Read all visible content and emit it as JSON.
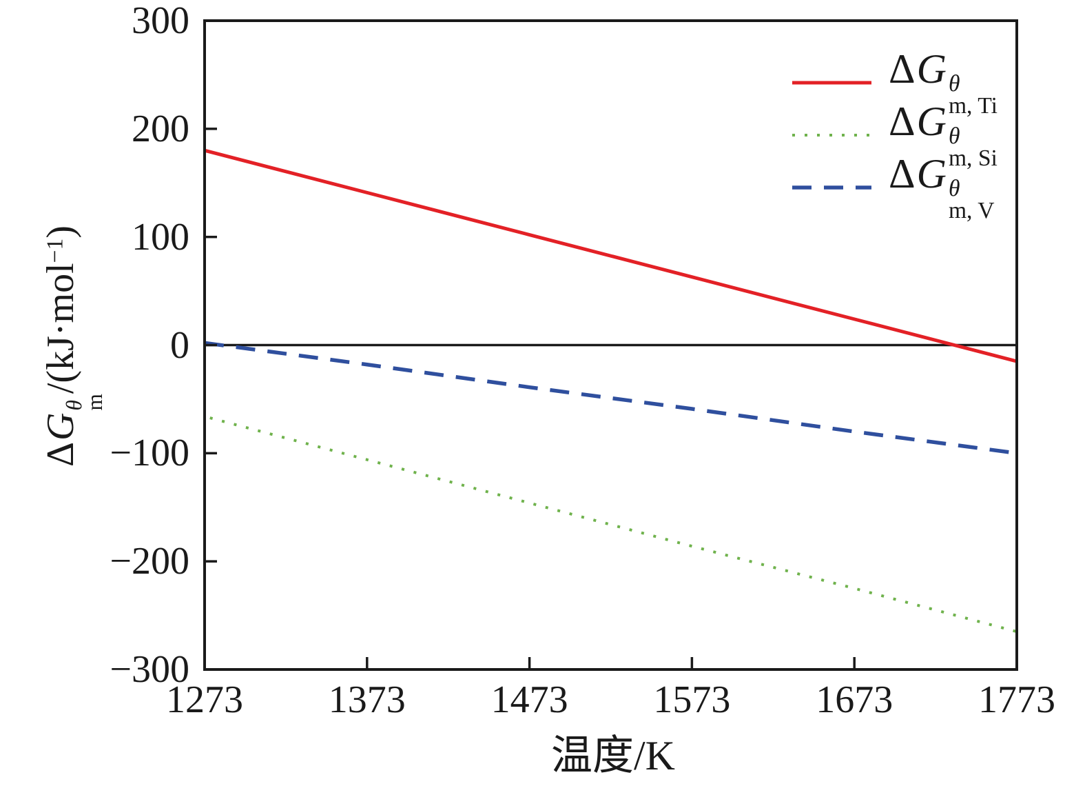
{
  "colors": {
    "background": "#ffffff",
    "axis": "#1a1a1a",
    "ti_red": "#e32126",
    "si_green": "#6fb24c",
    "v_blue": "#2f4f9e"
  },
  "axes": {
    "x": {
      "label": "温度/K",
      "ticks": [
        {
          "v": 1273,
          "label": "1273"
        },
        {
          "v": 1373,
          "label": "1373"
        },
        {
          "v": 1473,
          "label": "1473"
        },
        {
          "v": 1573,
          "label": "1573"
        },
        {
          "v": 1673,
          "label": "1673"
        },
        {
          "v": 1773,
          "label": "1773"
        }
      ]
    },
    "y": {
      "title": {
        "delta": "Δ",
        "g": "G",
        "sup": "θ",
        "sub": "m",
        "unit": "/(kJ·mol",
        "unit_sup": "−1",
        "unit_close": ")"
      },
      "ticks": [
        {
          "v": 300,
          "label": "300"
        },
        {
          "v": 200,
          "label": "200"
        },
        {
          "v": 100,
          "label": "100"
        },
        {
          "v": 0,
          "label": "0"
        },
        {
          "v": -100,
          "label": "−100"
        },
        {
          "v": -200,
          "label": "−200"
        },
        {
          "v": -300,
          "label": "−300"
        }
      ]
    }
  },
  "legend": {
    "items": [
      {
        "delta": "Δ",
        "g": "G",
        "sup": "θ",
        "sub": "m, Ti"
      },
      {
        "delta": "Δ",
        "g": "G",
        "sup": "θ",
        "sub": "m, Si"
      },
      {
        "delta": "Δ",
        "g": "G",
        "sup": "θ",
        "sub": "m, V"
      }
    ]
  },
  "chart_data": {
    "type": "line",
    "title": "",
    "xlabel": "温度/K",
    "ylabel": "ΔG_m^θ/(kJ·mol−1)",
    "xlim": [
      1273,
      1773
    ],
    "ylim": [
      -300,
      300
    ],
    "grid": false,
    "zero_line": true,
    "legend_position": "upper right",
    "x": [
      1273,
      1373,
      1473,
      1573,
      1673,
      1773
    ],
    "series": [
      {
        "id": "ti",
        "name": "ΔG_m,Ti^θ",
        "style": "solid",
        "color": "#e32126",
        "values": [
          180,
          141,
          102,
          63,
          24,
          -15
        ]
      },
      {
        "id": "si",
        "name": "ΔG_m,Si^θ",
        "style": "dotted",
        "color": "#6fb24c",
        "values": [
          -66,
          -106,
          -146,
          -186,
          -225,
          -265
        ]
      },
      {
        "id": "v",
        "name": "ΔG_m,V^θ",
        "style": "dashed",
        "color": "#2f4f9e",
        "values": [
          2,
          -18,
          -39,
          -59,
          -80,
          -100
        ]
      }
    ]
  }
}
